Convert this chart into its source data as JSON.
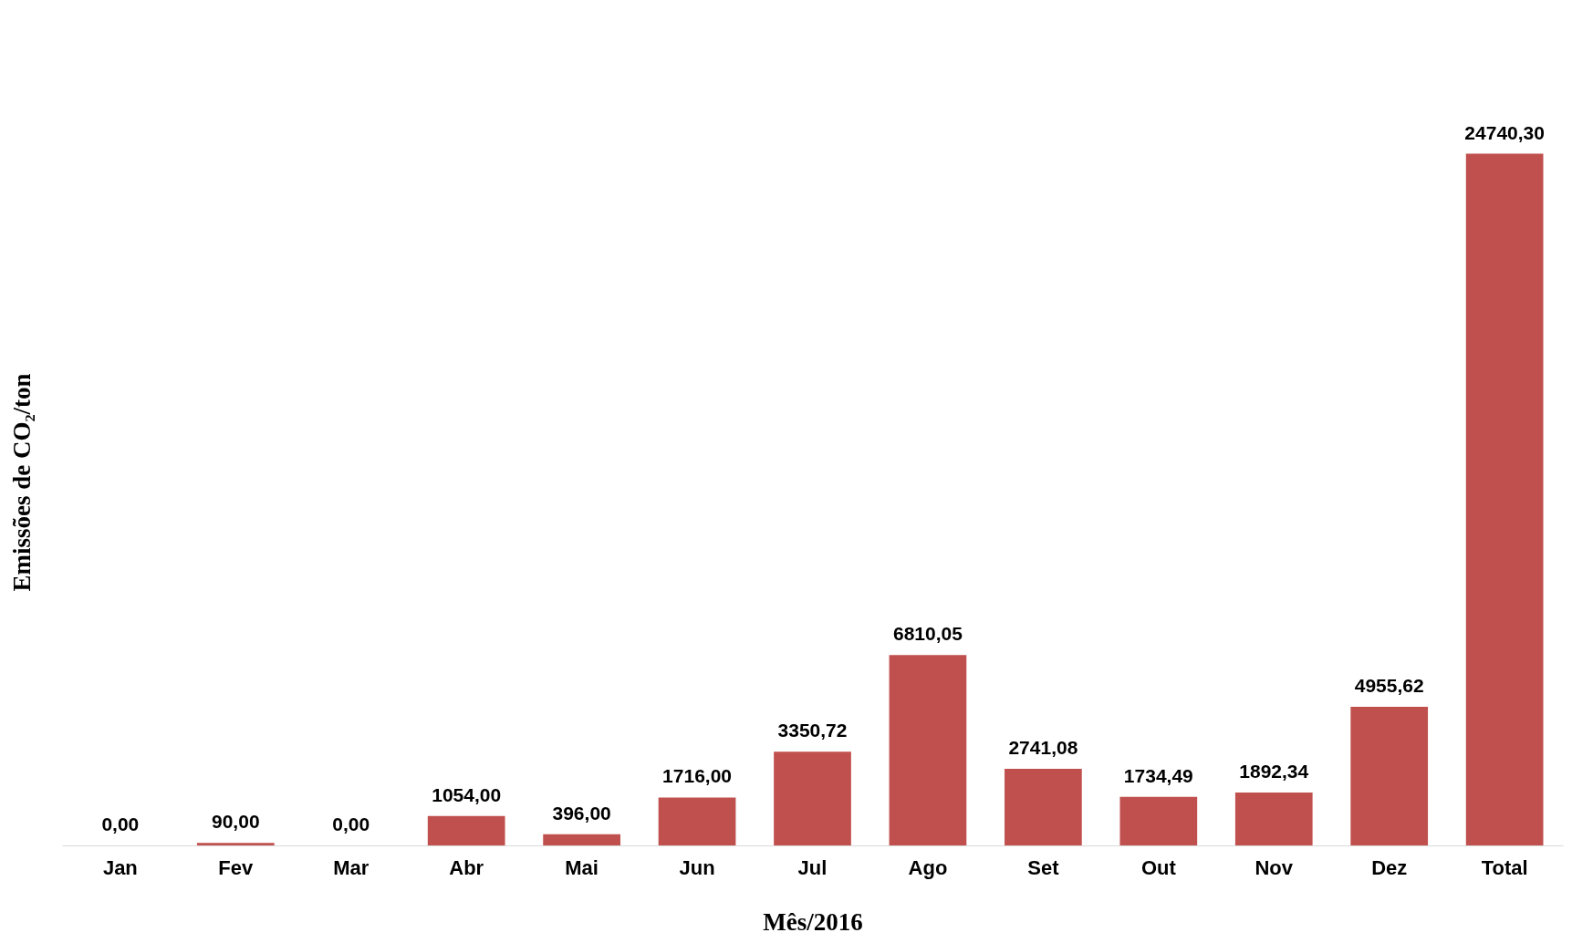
{
  "chart_data": {
    "type": "bar",
    "xlabel": "Mês/2016",
    "ylabel": "Emissões de CO₂/ton",
    "categories": [
      "Jan",
      "Fev",
      "Mar",
      "Abr",
      "Mai",
      "Jun",
      "Jul",
      "Ago",
      "Set",
      "Out",
      "Nov",
      "Dez",
      "Total"
    ],
    "values": [
      0,
      90,
      0,
      1054,
      396,
      1716,
      3350.72,
      6810.05,
      2741.08,
      1734.49,
      1892.34,
      4955.62,
      24740.3
    ],
    "value_labels": [
      "0,00",
      "90,00",
      "0,00",
      "1054,00",
      "396,00",
      "1716,00",
      "3350,72",
      "6810,05",
      "2741,08",
      "1734,49",
      "1892,34",
      "4955,62",
      "24740,30"
    ],
    "color": "#c0504d"
  }
}
